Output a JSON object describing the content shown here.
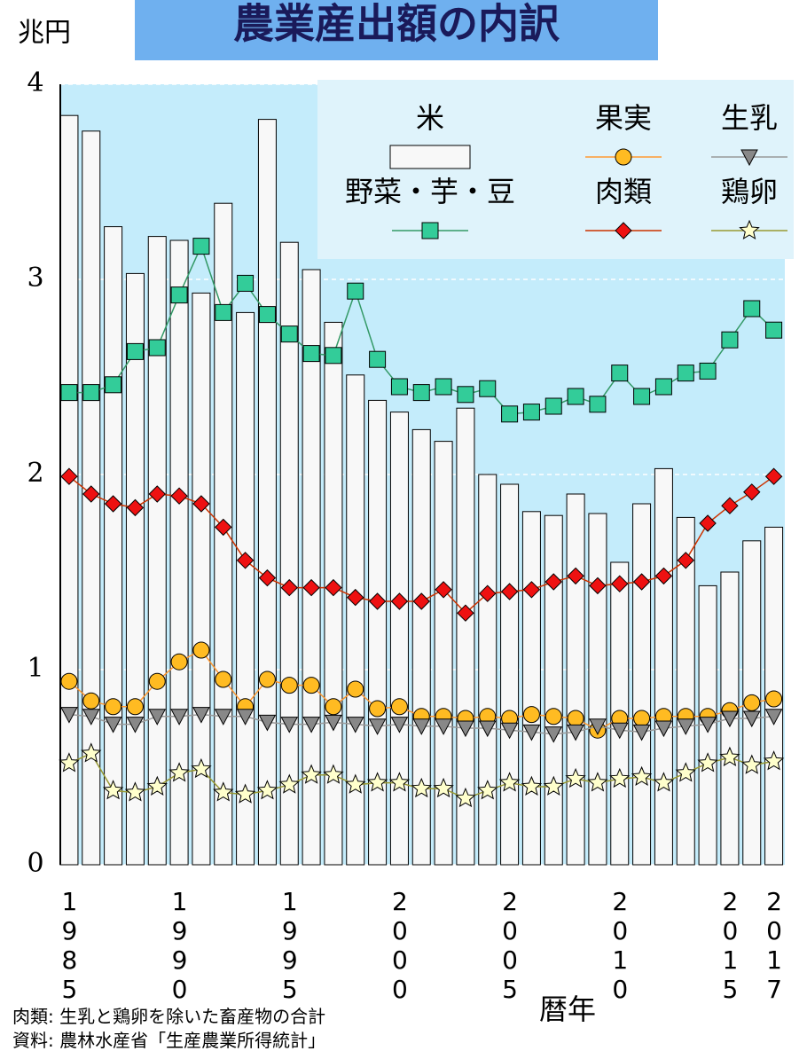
{
  "chart_data": {
    "type": "combo",
    "title": "農業産出額の内訳",
    "y_label": "兆円",
    "x_label": "暦年",
    "notes": [
      "肉類: 生乳と鶏卵を除いた畜産物の合計",
      "資料: 農林水産省「生産農業所得統計」"
    ],
    "x": [
      1985,
      1986,
      1987,
      1988,
      1989,
      1990,
      1991,
      1992,
      1993,
      1994,
      1995,
      1996,
      1997,
      1998,
      1999,
      2000,
      2001,
      2002,
      2003,
      2004,
      2005,
      2006,
      2007,
      2008,
      2009,
      2010,
      2011,
      2012,
      2013,
      2014,
      2015,
      2016,
      2017
    ],
    "xlim": [
      1984.6,
      2017.5
    ],
    "xticks": [
      1985,
      1990,
      1995,
      2000,
      2005,
      2010,
      2015,
      2017
    ],
    "ylim": [
      0,
      4
    ],
    "yticks": [
      0,
      1,
      2,
      3,
      4
    ],
    "grid": true,
    "legend": "upper right",
    "series": [
      {
        "name": "米",
        "type": "bar",
        "color": "#f8f8f8",
        "values": [
          3.84,
          3.76,
          3.27,
          3.03,
          3.22,
          3.2,
          2.93,
          3.39,
          2.83,
          3.82,
          3.19,
          3.05,
          2.78,
          2.51,
          2.38,
          2.32,
          2.23,
          2.17,
          2.34,
          2.0,
          1.95,
          1.81,
          1.79,
          1.9,
          1.8,
          1.55,
          1.85,
          2.03,
          1.78,
          1.43,
          1.5,
          1.66,
          1.73
        ]
      },
      {
        "name": "果実",
        "type": "line",
        "marker": "circle",
        "color": "#ffbb22",
        "line_color": "#ff9933",
        "values": [
          0.94,
          0.84,
          0.81,
          0.81,
          0.94,
          1.04,
          1.1,
          0.95,
          0.81,
          0.95,
          0.92,
          0.92,
          0.81,
          0.9,
          0.8,
          0.81,
          0.76,
          0.76,
          0.75,
          0.76,
          0.75,
          0.77,
          0.76,
          0.75,
          0.69,
          0.75,
          0.75,
          0.76,
          0.76,
          0.76,
          0.79,
          0.83,
          0.85
        ]
      },
      {
        "name": "生乳",
        "type": "line",
        "marker": "triangle-down",
        "color": "#888888",
        "line_color": "#999999",
        "values": [
          0.77,
          0.76,
          0.72,
          0.72,
          0.76,
          0.76,
          0.77,
          0.76,
          0.76,
          0.73,
          0.72,
          0.72,
          0.73,
          0.72,
          0.71,
          0.72,
          0.71,
          0.71,
          0.7,
          0.7,
          0.69,
          0.68,
          0.67,
          0.68,
          0.71,
          0.69,
          0.68,
          0.7,
          0.71,
          0.72,
          0.75,
          0.75,
          0.76
        ]
      },
      {
        "name": "野菜・芋・豆",
        "type": "line",
        "marker": "square",
        "color": "#33cc99",
        "line_color": "#339966",
        "values": [
          2.42,
          2.42,
          2.46,
          2.63,
          2.65,
          2.92,
          3.17,
          2.83,
          2.98,
          2.82,
          2.72,
          2.62,
          2.61,
          2.94,
          2.59,
          2.45,
          2.42,
          2.45,
          2.41,
          2.44,
          2.31,
          2.32,
          2.35,
          2.4,
          2.36,
          2.52,
          2.4,
          2.45,
          2.52,
          2.53,
          2.69,
          2.85,
          2.74
        ]
      },
      {
        "name": "肉類",
        "type": "line",
        "marker": "diamond",
        "color": "#ee1111",
        "line_color": "#cc3300",
        "values": [
          1.99,
          1.9,
          1.85,
          1.83,
          1.9,
          1.89,
          1.85,
          1.73,
          1.56,
          1.47,
          1.42,
          1.42,
          1.42,
          1.37,
          1.35,
          1.35,
          1.35,
          1.41,
          1.29,
          1.39,
          1.4,
          1.41,
          1.45,
          1.48,
          1.43,
          1.44,
          1.45,
          1.48,
          1.56,
          1.75,
          1.84,
          1.91,
          1.99
        ]
      },
      {
        "name": "鶏卵",
        "type": "line",
        "marker": "star",
        "color": "#ffffcc",
        "line_color": "#999933",
        "values": [
          0.52,
          0.57,
          0.38,
          0.37,
          0.4,
          0.47,
          0.49,
          0.37,
          0.36,
          0.38,
          0.41,
          0.46,
          0.46,
          0.41,
          0.42,
          0.42,
          0.39,
          0.39,
          0.34,
          0.38,
          0.42,
          0.4,
          0.4,
          0.44,
          0.42,
          0.44,
          0.45,
          0.42,
          0.47,
          0.52,
          0.55,
          0.51,
          0.53
        ]
      }
    ]
  }
}
